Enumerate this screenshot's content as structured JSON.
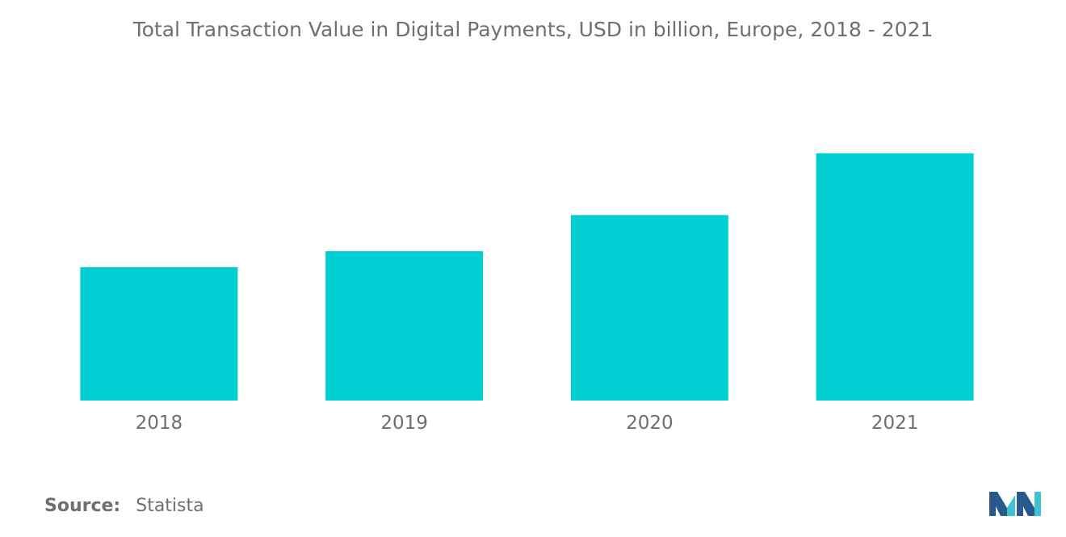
{
  "chart_data": {
    "type": "bar",
    "title": "Total Transaction Value in Digital Payments, USD in billion, Europe, 2018 - 2021",
    "categories": [
      "2018",
      "2019",
      "2020",
      "2021"
    ],
    "values": [
      166,
      186,
      231,
      308
    ],
    "xlabel": "",
    "ylabel": "",
    "ylim": [
      0,
      340
    ],
    "grid": false,
    "legend": "none",
    "bar_color": "#00cfd1"
  },
  "footer": {
    "source_label": "Source:",
    "source_value": "Statista"
  },
  "colors": {
    "text": "#6f6f6f",
    "accent": "#00cfd1",
    "logo_dark": "#2a5a8c",
    "logo_light": "#3ec3d2"
  }
}
